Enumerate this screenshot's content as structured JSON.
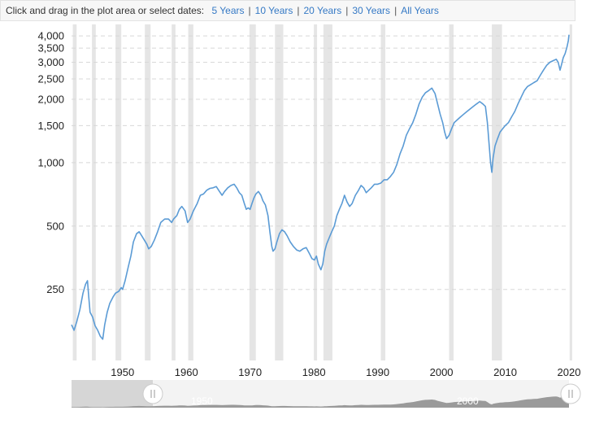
{
  "toolbar": {
    "prompt": "Click and drag in the plot area or select dates:",
    "ranges": [
      "5 Years",
      "10 Years",
      "20 Years",
      "30 Years",
      "All Years"
    ],
    "separator": "|"
  },
  "navigator": {
    "labels": [
      "1950",
      "2000"
    ],
    "handle_icon": "grip-lines-icon"
  },
  "colors": {
    "line": "#5b9bd5",
    "recession": "#e5e5e5",
    "grid": "#d8d8d8",
    "link": "#3579c5"
  },
  "chart_data": {
    "type": "line",
    "title": "",
    "xlabel": "",
    "ylabel": "",
    "y_scale": "log",
    "grid": "horizontal dashed",
    "xlim": [
      1942,
      2020
    ],
    "ylim": [
      115,
      4300
    ],
    "x_ticks": [
      1950,
      1960,
      1970,
      1980,
      1990,
      2000,
      2010,
      2020
    ],
    "y_ticks": [
      {
        "value": 250,
        "label": "250"
      },
      {
        "value": 500,
        "label": "500"
      },
      {
        "value": 1000,
        "label": "1,000"
      },
      {
        "value": 1500,
        "label": "1,500"
      },
      {
        "value": 2000,
        "label": "2,000"
      },
      {
        "value": 2500,
        "label": "2,500"
      },
      {
        "value": 3000,
        "label": "3,000"
      },
      {
        "value": 3500,
        "label": "3,500"
      },
      {
        "value": 4000,
        "label": "4,000"
      }
    ],
    "recessions": [
      [
        1942.2,
        1942.8
      ],
      [
        1945.2,
        1945.8
      ],
      [
        1948.9,
        1949.8
      ],
      [
        1953.5,
        1954.4
      ],
      [
        1957.7,
        1958.3
      ],
      [
        1960.3,
        1961.1
      ],
      [
        1969.9,
        1970.9
      ],
      [
        1973.9,
        1975.2
      ],
      [
        1980.0,
        1980.5
      ],
      [
        1981.5,
        1982.9
      ],
      [
        1990.5,
        1991.2
      ],
      [
        2001.2,
        2001.9
      ],
      [
        2007.9,
        2009.5
      ],
      [
        2020.1,
        2020.5
      ]
    ],
    "series": [
      {
        "values": [
          [
            1942.0,
            170
          ],
          [
            1942.4,
            160
          ],
          [
            1942.8,
            175
          ],
          [
            1943.3,
            200
          ],
          [
            1943.8,
            240
          ],
          [
            1944.2,
            265
          ],
          [
            1944.5,
            275
          ],
          [
            1944.7,
            230
          ],
          [
            1944.9,
            195
          ],
          [
            1945.3,
            185
          ],
          [
            1945.7,
            168
          ],
          [
            1946.1,
            160
          ],
          [
            1946.5,
            150
          ],
          [
            1946.9,
            145
          ],
          [
            1947.2,
            170
          ],
          [
            1947.6,
            195
          ],
          [
            1948.0,
            215
          ],
          [
            1948.5,
            230
          ],
          [
            1948.9,
            240
          ],
          [
            1949.4,
            245
          ],
          [
            1949.8,
            255
          ],
          [
            1950.0,
            250
          ],
          [
            1950.4,
            275
          ],
          [
            1950.9,
            320
          ],
          [
            1951.3,
            360
          ],
          [
            1951.7,
            420
          ],
          [
            1952.2,
            460
          ],
          [
            1952.6,
            470
          ],
          [
            1953.0,
            450
          ],
          [
            1953.4,
            430
          ],
          [
            1953.8,
            410
          ],
          [
            1954.1,
            390
          ],
          [
            1954.5,
            400
          ],
          [
            1955.0,
            430
          ],
          [
            1955.5,
            470
          ],
          [
            1956.0,
            520
          ],
          [
            1956.6,
            540
          ],
          [
            1957.2,
            540
          ],
          [
            1957.7,
            520
          ],
          [
            1958.0,
            540
          ],
          [
            1958.5,
            560
          ],
          [
            1958.9,
            600
          ],
          [
            1959.3,
            620
          ],
          [
            1959.8,
            590
          ],
          [
            1960.2,
            520
          ],
          [
            1960.6,
            540
          ],
          [
            1961.1,
            590
          ],
          [
            1961.7,
            640
          ],
          [
            1962.2,
            700
          ],
          [
            1962.7,
            710
          ],
          [
            1963.2,
            740
          ],
          [
            1963.7,
            755
          ],
          [
            1964.2,
            760
          ],
          [
            1964.7,
            770
          ],
          [
            1965.2,
            730
          ],
          [
            1965.6,
            700
          ],
          [
            1966.0,
            730
          ],
          [
            1966.5,
            760
          ],
          [
            1967.0,
            780
          ],
          [
            1967.5,
            790
          ],
          [
            1967.9,
            760
          ],
          [
            1968.3,
            720
          ],
          [
            1968.7,
            700
          ],
          [
            1969.1,
            640
          ],
          [
            1969.4,
            600
          ],
          [
            1969.7,
            610
          ],
          [
            1970.0,
            600
          ],
          [
            1970.3,
            640
          ],
          [
            1970.6,
            680
          ],
          [
            1970.9,
            710
          ],
          [
            1971.3,
            730
          ],
          [
            1971.7,
            700
          ],
          [
            1972.0,
            660
          ],
          [
            1972.4,
            630
          ],
          [
            1972.8,
            560
          ],
          [
            1973.1,
            470
          ],
          [
            1973.4,
            400
          ],
          [
            1973.6,
            380
          ],
          [
            1973.9,
            390
          ],
          [
            1974.2,
            420
          ],
          [
            1974.6,
            460
          ],
          [
            1975.0,
            480
          ],
          [
            1975.4,
            470
          ],
          [
            1975.8,
            450
          ],
          [
            1976.3,
            420
          ],
          [
            1976.8,
            400
          ],
          [
            1977.3,
            385
          ],
          [
            1977.8,
            380
          ],
          [
            1978.3,
            390
          ],
          [
            1978.8,
            395
          ],
          [
            1979.3,
            370
          ],
          [
            1979.7,
            350
          ],
          [
            1980.1,
            345
          ],
          [
            1980.4,
            360
          ],
          [
            1980.7,
            330
          ],
          [
            1981.1,
            310
          ],
          [
            1981.4,
            330
          ],
          [
            1981.7,
            380
          ],
          [
            1982.0,
            410
          ],
          [
            1982.4,
            440
          ],
          [
            1982.8,
            470
          ],
          [
            1983.2,
            500
          ],
          [
            1983.6,
            560
          ],
          [
            1984.0,
            600
          ],
          [
            1984.4,
            640
          ],
          [
            1984.8,
            700
          ],
          [
            1985.2,
            650
          ],
          [
            1985.6,
            620
          ],
          [
            1986.0,
            640
          ],
          [
            1986.5,
            700
          ],
          [
            1987.0,
            740
          ],
          [
            1987.4,
            780
          ],
          [
            1987.8,
            760
          ],
          [
            1988.2,
            720
          ],
          [
            1988.6,
            740
          ],
          [
            1989.0,
            760
          ],
          [
            1989.5,
            790
          ],
          [
            1990.0,
            790
          ],
          [
            1990.5,
            800
          ],
          [
            1991.0,
            830
          ],
          [
            1991.5,
            830
          ],
          [
            1992.0,
            860
          ],
          [
            1992.5,
            900
          ],
          [
            1993.0,
            980
          ],
          [
            1993.5,
            1100
          ],
          [
            1994.0,
            1200
          ],
          [
            1994.5,
            1350
          ],
          [
            1995.0,
            1450
          ],
          [
            1995.5,
            1550
          ],
          [
            1996.0,
            1700
          ],
          [
            1996.5,
            1900
          ],
          [
            1997.0,
            2050
          ],
          [
            1997.5,
            2150
          ],
          [
            1998.0,
            2200
          ],
          [
            1998.5,
            2260
          ],
          [
            1999.0,
            2130
          ],
          [
            1999.4,
            1900
          ],
          [
            1999.8,
            1700
          ],
          [
            2000.2,
            1550
          ],
          [
            2000.5,
            1400
          ],
          [
            2000.8,
            1300
          ],
          [
            2001.2,
            1350
          ],
          [
            2001.6,
            1450
          ],
          [
            2002.0,
            1550
          ],
          [
            2002.5,
            1600
          ],
          [
            2003.0,
            1650
          ],
          [
            2003.5,
            1700
          ],
          [
            2004.0,
            1750
          ],
          [
            2004.5,
            1800
          ],
          [
            2005.0,
            1850
          ],
          [
            2005.5,
            1900
          ],
          [
            2006.0,
            1950
          ],
          [
            2006.5,
            1900
          ],
          [
            2006.9,
            1850
          ],
          [
            2007.2,
            1550
          ],
          [
            2007.5,
            1200
          ],
          [
            2007.7,
            1000
          ],
          [
            2007.9,
            900
          ],
          [
            2008.1,
            1050
          ],
          [
            2008.4,
            1200
          ],
          [
            2008.8,
            1300
          ],
          [
            2009.2,
            1400
          ],
          [
            2009.6,
            1450
          ],
          [
            2010.0,
            1500
          ],
          [
            2010.5,
            1550
          ],
          [
            2011.0,
            1650
          ],
          [
            2011.5,
            1750
          ],
          [
            2012.0,
            1900
          ],
          [
            2012.5,
            2050
          ],
          [
            2013.0,
            2200
          ],
          [
            2013.5,
            2300
          ],
          [
            2014.0,
            2350
          ],
          [
            2014.5,
            2400
          ],
          [
            2015.0,
            2450
          ],
          [
            2015.5,
            2600
          ],
          [
            2016.0,
            2750
          ],
          [
            2016.5,
            2900
          ],
          [
            2017.0,
            3000
          ],
          [
            2017.5,
            3050
          ],
          [
            2018.0,
            3100
          ],
          [
            2018.3,
            3000
          ],
          [
            2018.6,
            2750
          ],
          [
            2018.8,
            2900
          ],
          [
            2019.1,
            3150
          ],
          [
            2019.4,
            3300
          ],
          [
            2019.7,
            3550
          ],
          [
            2019.9,
            3800
          ],
          [
            2020.0,
            4050
          ]
        ]
      }
    ]
  }
}
